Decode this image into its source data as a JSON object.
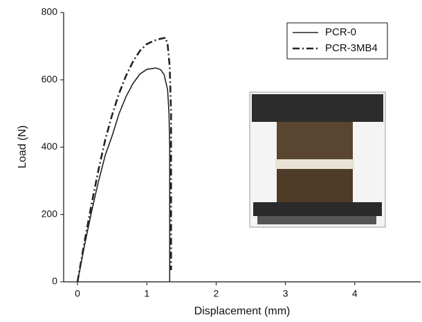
{
  "chart_data": {
    "type": "line",
    "x_label": "Displacement (mm)",
    "y_label": "Load (N)",
    "xlim": [
      -0.2,
      4.95
    ],
    "ylim": [
      0,
      800
    ],
    "xticks": [
      0,
      1,
      2,
      3,
      4
    ],
    "yticks": [
      0,
      200,
      400,
      600,
      800
    ],
    "legend": "top-right",
    "series": [
      {
        "name": "PCR-0",
        "color": "#222222",
        "linestyle": "solid",
        "x": [
          0,
          0.1,
          0.2,
          0.3,
          0.4,
          0.5,
          0.6,
          0.7,
          0.8,
          0.9,
          1.0,
          1.13,
          1.2,
          1.25,
          1.3,
          1.32,
          1.33,
          1.33
        ],
        "values": [
          0,
          107,
          206,
          296,
          376,
          434,
          500,
          550,
          589,
          617,
          631,
          635,
          630,
          615,
          570,
          500,
          400,
          0
        ]
      },
      {
        "name": "PCR-3MB4",
        "color": "#222222",
        "linestyle": "dashdot",
        "x": [
          0,
          0.1,
          0.2,
          0.3,
          0.4,
          0.5,
          0.6,
          0.7,
          0.8,
          0.9,
          1.0,
          1.1,
          1.2,
          1.27,
          1.3,
          1.33,
          1.35,
          1.35
        ],
        "values": [
          0,
          118,
          228,
          330,
          422,
          496,
          560,
          612,
          654,
          686,
          706,
          716,
          722,
          725,
          705,
          640,
          500,
          35
        ]
      }
    ]
  }
}
